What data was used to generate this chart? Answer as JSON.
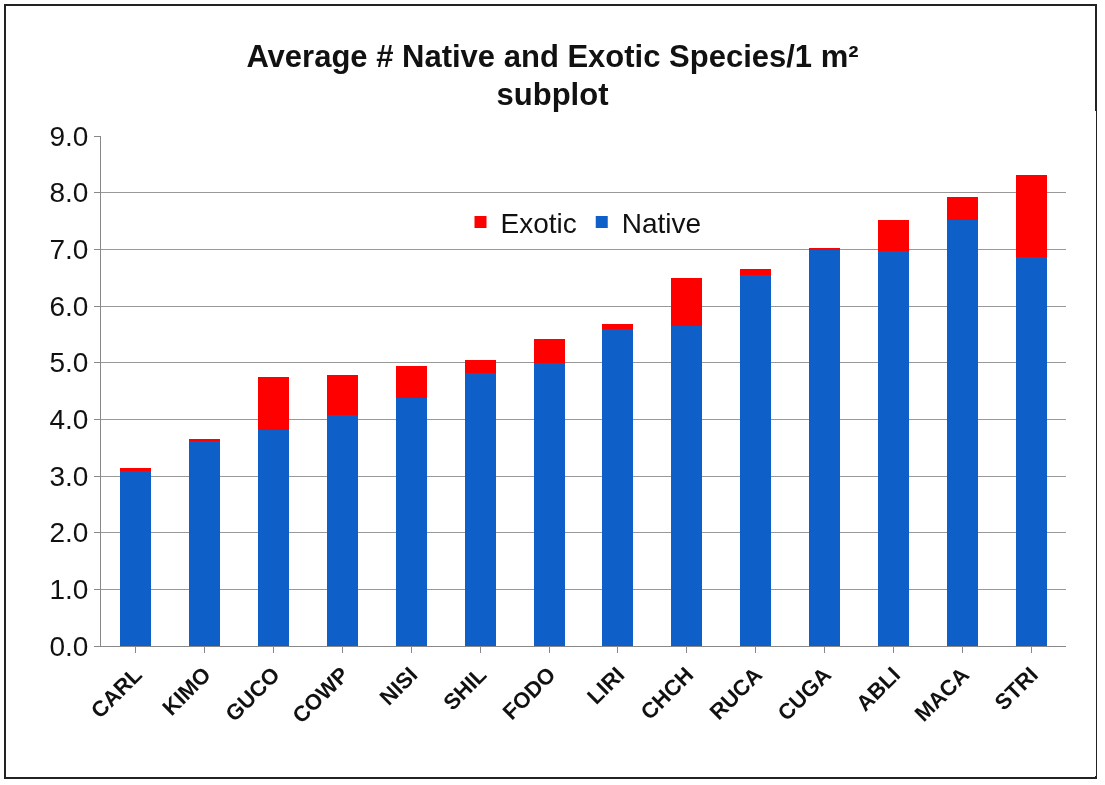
{
  "chart_data": {
    "type": "bar",
    "title": "Average # Native and Exotic Species/1 m² subplot",
    "categories": [
      "CARL",
      "KIMO",
      "GUCO",
      "COWP",
      "NISI",
      "SHIL",
      "FODO",
      "LIRI",
      "CHCH",
      "RUCA",
      "CUGA",
      "ABLI",
      "MACA",
      "STRI"
    ],
    "series": [
      {
        "name": "Native",
        "color": "#0f5fc8",
        "values": [
          3.08,
          3.62,
          3.82,
          4.08,
          4.38,
          4.82,
          5.0,
          5.6,
          5.65,
          6.55,
          7.0,
          6.97,
          7.52,
          6.87
        ]
      },
      {
        "name": "Exotic",
        "color": "#ff0000",
        "values": [
          0.07,
          0.04,
          0.93,
          0.7,
          0.57,
          0.23,
          0.42,
          0.08,
          0.85,
          0.1,
          0.03,
          0.55,
          0.4,
          1.45
        ]
      }
    ],
    "stacked": true,
    "ylim": [
      0,
      9
    ],
    "yticks": [
      {
        "value": 0,
        "label": "0.0"
      },
      {
        "value": 1,
        "label": "1.0"
      },
      {
        "value": 2,
        "label": "2.0"
      },
      {
        "value": 3,
        "label": "3.0"
      },
      {
        "value": 4,
        "label": "4.0"
      },
      {
        "value": 5,
        "label": "5.0"
      },
      {
        "value": 6,
        "label": "6.0"
      },
      {
        "value": 7,
        "label": "7.0"
      },
      {
        "value": 8,
        "label": "8.0"
      },
      {
        "value": 9,
        "label": "9.0"
      }
    ],
    "grid": "y",
    "legend": "top"
  }
}
